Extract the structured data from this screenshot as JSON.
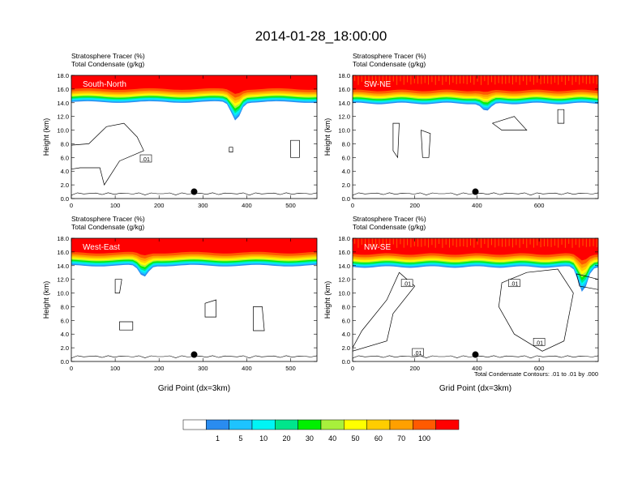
{
  "title": "2014-01-28_18:00:00",
  "legend": {
    "colors": [
      "#ffffff",
      "#2a8cf0",
      "#1ec3ff",
      "#00f5f5",
      "#00e68c",
      "#00f000",
      "#a8f03c",
      "#ffff00",
      "#ffcd00",
      "#ffa000",
      "#ff5a00",
      "#ff0000"
    ],
    "labels": [
      "1",
      "5",
      "10",
      "20",
      "30",
      "40",
      "50",
      "60",
      "70",
      "100"
    ]
  },
  "contour_note": "Total Condensate Contours: .01 to .01 by .000",
  "chart_data": [
    {
      "type": "heatmap",
      "name": "South-North",
      "title_lines": [
        "Stratosphere Tracer   (%)",
        "Total Condensate   (g/kg)"
      ],
      "ylabel": "Height (km)",
      "xlabel": "",
      "xlim": [
        0,
        560
      ],
      "ylim": [
        0,
        18
      ],
      "xticks": [
        0,
        100,
        200,
        300,
        400,
        500
      ],
      "yticks": [
        "0.0",
        "2.0",
        "4.0",
        "6.0",
        "8.0",
        "10.0",
        "12.0",
        "14.0",
        "16.0",
        "18.0"
      ],
      "tracer_top_km": 16.4,
      "tracer_dip": {
        "x": 375,
        "depth_km": 2.2
      },
      "marker_x": 280,
      "contour_labels": [
        {
          "x": 170,
          "y": 5.8,
          "text": ".01"
        }
      ]
    },
    {
      "type": "heatmap",
      "name": "SW-NE",
      "title_lines": [
        "Stratosphere Tracer   (%)",
        "Total Condensate   (g/kg)"
      ],
      "ylabel": "Height (km)",
      "xlabel": "",
      "xlim": [
        0,
        790
      ],
      "ylim": [
        0,
        18
      ],
      "xticks": [
        0,
        200,
        400,
        600
      ],
      "yticks": [
        "0.0",
        "2.0",
        "4.0",
        "6.0",
        "8.0",
        "10.0",
        "12.0",
        "14.0",
        "16.0",
        "18.0"
      ],
      "tracer_top_km": 16.2,
      "tracer_dip": {
        "x": 430,
        "depth_km": 1.0
      },
      "marker_x": 395,
      "contour_labels": []
    },
    {
      "type": "heatmap",
      "name": "West-East",
      "title_lines": [
        "Stratosphere Tracer   (%)",
        "Total Condensate   (g/kg)"
      ],
      "ylabel": "Height (km)",
      "xlabel": "Grid Point (dx=3km)",
      "xlim": [
        0,
        560
      ],
      "ylim": [
        0,
        18
      ],
      "xticks": [
        0,
        100,
        200,
        300,
        400,
        500
      ],
      "yticks": [
        "0.0",
        "2.0",
        "4.0",
        "6.0",
        "8.0",
        "10.0",
        "12.0",
        "14.0",
        "16.0",
        "18.0"
      ],
      "tracer_top_km": 16.3,
      "tracer_dip": {
        "x": 165,
        "depth_km": 1.4
      },
      "marker_x": 280,
      "contour_labels": []
    },
    {
      "type": "heatmap",
      "name": "NW-SE",
      "title_lines": [
        "Stratosphere Tracer   (%)",
        "Total Condensate   (g/kg)"
      ],
      "ylabel": "Height (km)",
      "xlabel": "Grid Point (dx=3km)",
      "xlim": [
        0,
        790
      ],
      "ylim": [
        0,
        18
      ],
      "xticks": [
        0,
        200,
        400,
        600
      ],
      "yticks": [
        "0.0",
        "2.0",
        "4.0",
        "6.0",
        "8.0",
        "10.0",
        "12.0",
        "14.0",
        "16.0",
        "18.0"
      ],
      "tracer_top_km": 16.1,
      "tracer_dip": {
        "x": 740,
        "depth_km": 3.0
      },
      "marker_x": 395,
      "contour_labels": [
        {
          "x": 175,
          "y": 11.4,
          "text": ".01"
        },
        {
          "x": 520,
          "y": 11.4,
          "text": ".01"
        },
        {
          "x": 600,
          "y": 2.8,
          "text": ".01"
        },
        {
          "x": 210,
          "y": 1.3,
          "text": ".01"
        }
      ]
    }
  ]
}
